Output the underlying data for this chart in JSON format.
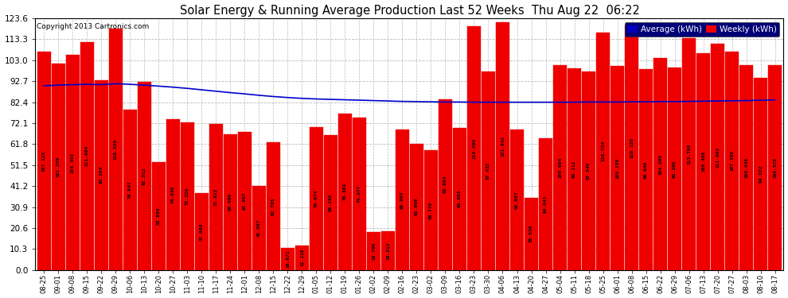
{
  "title": "Solar Energy & Running Average Production Last 52 Weeks  Thu Aug 22  06:22",
  "copyright": "Copyright 2013 Cartronics.com",
  "bar_color": "#ee0000",
  "line_color": "#0000cc",
  "background_color": "#ffffff",
  "plot_bg_color": "#ffffff",
  "grid_color": "#bbbbbb",
  "yticks": [
    0.0,
    10.3,
    20.6,
    30.9,
    41.2,
    51.5,
    61.8,
    72.1,
    82.4,
    92.7,
    103.0,
    113.3,
    123.6
  ],
  "categories": [
    "08-25",
    "09-01",
    "09-08",
    "09-15",
    "09-22",
    "09-29",
    "10-06",
    "10-13",
    "10-20",
    "10-27",
    "11-03",
    "11-10",
    "11-17",
    "11-24",
    "12-01",
    "12-08",
    "12-15",
    "12-22",
    "12-29",
    "01-05",
    "01-12",
    "01-19",
    "01-26",
    "02-02",
    "02-09",
    "02-16",
    "02-23",
    "03-02",
    "03-09",
    "03-16",
    "03-23",
    "03-30",
    "04-06",
    "04-13",
    "04-20",
    "04-27",
    "05-04",
    "05-11",
    "05-18",
    "05-25",
    "06-01",
    "06-08",
    "06-15",
    "06-22",
    "06-29",
    "07-06",
    "07-13",
    "07-20",
    "07-27",
    "08-03",
    "08-10",
    "08-17"
  ],
  "weekly_values": [
    107.125,
    101.209,
    105.493,
    111.984,
    93.264,
    118.53,
    78.647,
    92.312,
    53.056,
    74.038,
    72.32,
    37.688,
    71.612,
    66.696,
    67.967,
    41.097,
    62.705,
    10.671,
    12.118,
    70.074,
    66.288,
    76.881,
    74.877,
    18.7,
    18.813,
    68.903,
    62.06,
    58.77,
    83.984,
    69.903,
    119.59,
    97.432,
    121.642,
    68.907,
    35.536,
    64.641,
    100.664,
    99.112,
    97.54,
    116.754,
    100.158,
    120.158,
    98.646,
    104.006,
    99.39,
    113.79,
    106.468,
    111.092,
    107.39,
    100.436,
    94.222,
    100.576
  ],
  "avg_values": [
    90.5,
    90.8,
    91.0,
    91.2,
    91.0,
    91.5,
    91.2,
    90.8,
    90.3,
    89.8,
    89.2,
    88.5,
    87.8,
    87.1,
    86.5,
    85.8,
    85.2,
    84.7,
    84.3,
    84.0,
    83.8,
    83.6,
    83.4,
    83.2,
    83.0,
    82.8,
    82.7,
    82.6,
    82.5,
    82.5,
    82.4,
    82.4,
    82.4,
    82.4,
    82.4,
    82.4,
    82.4,
    82.4,
    82.5,
    82.5,
    82.5,
    82.6,
    82.6,
    82.7,
    82.7,
    82.8,
    82.9,
    83.0,
    83.1,
    83.2,
    83.4,
    83.5
  ]
}
